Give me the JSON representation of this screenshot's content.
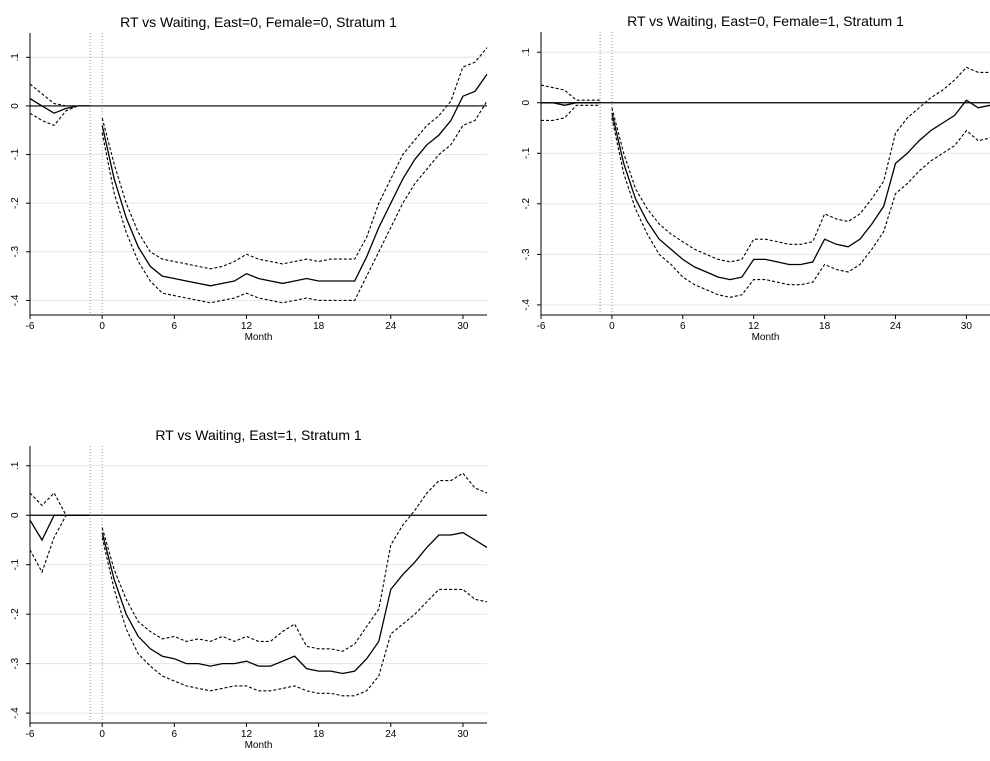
{
  "chart_data": [
    {
      "type": "line",
      "title": "RT vs Waiting, East=0, Female=0, Stratum 1",
      "xlabel": "Month",
      "ylabel": "",
      "xlim": [
        -6,
        32
      ],
      "ylim": [
        -0.43,
        0.15
      ],
      "xticks": [
        -6,
        0,
        6,
        12,
        18,
        24,
        30
      ],
      "yticks": [
        0.1,
        0,
        -0.1,
        -0.2,
        -0.3,
        -0.4
      ],
      "ytick_labels": [
        ".1",
        "0",
        "-.1",
        "-.2",
        "-.3",
        "-.4"
      ],
      "grid": true,
      "reference_lines": {
        "horizontal": [
          0
        ],
        "vertical_dotted": [
          -1,
          0
        ]
      },
      "series": [
        {
          "style": "solid",
          "x": [
            -6,
            -5,
            -4,
            -3,
            -2,
            -1
          ],
          "y": [
            0.015,
            0.0,
            -0.015,
            -0.005,
            0.0,
            0.0
          ]
        },
        {
          "style": "dashed",
          "x": [
            -6,
            -5,
            -4,
            -3,
            -2,
            -1
          ],
          "y": [
            0.045,
            0.025,
            0.005,
            0.0,
            0.0,
            0.0
          ]
        },
        {
          "style": "dashed",
          "x": [
            -6,
            -5,
            -4,
            -3,
            -2,
            -1
          ],
          "y": [
            -0.015,
            -0.03,
            -0.04,
            -0.01,
            0.0,
            0.0
          ]
        },
        {
          "style": "solid",
          "x": [
            0,
            1,
            2,
            3,
            4,
            5,
            6,
            7,
            8,
            9,
            10,
            11,
            12,
            13,
            14,
            15,
            16,
            17,
            18,
            19,
            20,
            21,
            22,
            23,
            24,
            25,
            26,
            27,
            28,
            29,
            30,
            31,
            32
          ],
          "y": [
            -0.04,
            -0.15,
            -0.23,
            -0.29,
            -0.33,
            -0.35,
            -0.355,
            -0.36,
            -0.365,
            -0.37,
            -0.365,
            -0.36,
            -0.345,
            -0.355,
            -0.36,
            -0.365,
            -0.36,
            -0.355,
            -0.36,
            -0.36,
            -0.36,
            -0.36,
            -0.31,
            -0.25,
            -0.2,
            -0.15,
            -0.11,
            -0.08,
            -0.06,
            -0.03,
            0.02,
            0.03,
            0.065
          ]
        },
        {
          "style": "dashed",
          "x": [
            0,
            1,
            2,
            3,
            4,
            5,
            6,
            7,
            8,
            9,
            10,
            11,
            12,
            13,
            14,
            15,
            16,
            17,
            18,
            19,
            20,
            21,
            22,
            23,
            24,
            25,
            26,
            27,
            28,
            29,
            30,
            31,
            32
          ],
          "y": [
            -0.025,
            -0.12,
            -0.2,
            -0.26,
            -0.3,
            -0.315,
            -0.32,
            -0.325,
            -0.33,
            -0.335,
            -0.33,
            -0.32,
            -0.305,
            -0.315,
            -0.32,
            -0.325,
            -0.32,
            -0.315,
            -0.32,
            -0.315,
            -0.315,
            -0.315,
            -0.27,
            -0.2,
            -0.15,
            -0.1,
            -0.07,
            -0.04,
            -0.02,
            0.01,
            0.08,
            0.09,
            0.12
          ]
        },
        {
          "style": "dashed",
          "x": [
            0,
            1,
            2,
            3,
            4,
            5,
            6,
            7,
            8,
            9,
            10,
            11,
            12,
            13,
            14,
            15,
            16,
            17,
            18,
            19,
            20,
            21,
            22,
            23,
            24,
            25,
            26,
            27,
            28,
            29,
            30,
            31,
            32
          ],
          "y": [
            -0.055,
            -0.18,
            -0.26,
            -0.32,
            -0.36,
            -0.385,
            -0.39,
            -0.395,
            -0.4,
            -0.405,
            -0.4,
            -0.395,
            -0.385,
            -0.395,
            -0.4,
            -0.405,
            -0.4,
            -0.395,
            -0.4,
            -0.4,
            -0.4,
            -0.4,
            -0.35,
            -0.3,
            -0.25,
            -0.2,
            -0.16,
            -0.13,
            -0.1,
            -0.08,
            -0.04,
            -0.03,
            0.01
          ]
        }
      ]
    },
    {
      "type": "line",
      "title": "RT vs Waiting, East=0, Female=1, Stratum 1",
      "xlabel": "Month",
      "ylabel": "",
      "xlim": [
        -6,
        32
      ],
      "ylim": [
        -0.42,
        0.14
      ],
      "xticks": [
        -6,
        0,
        6,
        12,
        18,
        24,
        30
      ],
      "yticks": [
        0.1,
        0,
        -0.1,
        -0.2,
        -0.3,
        -0.4
      ],
      "ytick_labels": [
        ".1",
        "0",
        "-.1",
        "-.2",
        "-.3",
        "-.4"
      ],
      "grid": true,
      "reference_lines": {
        "horizontal": [
          0
        ],
        "vertical_dotted": [
          -1,
          0
        ]
      },
      "series": [
        {
          "style": "solid",
          "x": [
            -6,
            -5,
            -4,
            -3,
            -2,
            -1
          ],
          "y": [
            0.0,
            0.0,
            -0.005,
            0.0,
            0.0,
            0.0
          ]
        },
        {
          "style": "dashed",
          "x": [
            -6,
            -5,
            -4,
            -3,
            -2,
            -1
          ],
          "y": [
            0.035,
            0.03,
            0.025,
            0.005,
            0.005,
            0.005
          ]
        },
        {
          "style": "dashed",
          "x": [
            -6,
            -5,
            -4,
            -3,
            -2,
            -1
          ],
          "y": [
            -0.035,
            -0.035,
            -0.03,
            -0.005,
            -0.005,
            -0.005
          ]
        },
        {
          "style": "solid",
          "x": [
            0,
            1,
            2,
            3,
            4,
            5,
            6,
            7,
            8,
            9,
            10,
            11,
            12,
            13,
            14,
            15,
            16,
            17,
            18,
            19,
            20,
            21,
            22,
            23,
            24,
            25,
            26,
            27,
            28,
            29,
            30,
            31,
            32
          ],
          "y": [
            -0.02,
            -0.12,
            -0.19,
            -0.235,
            -0.27,
            -0.29,
            -0.31,
            -0.325,
            -0.335,
            -0.345,
            -0.35,
            -0.345,
            -0.31,
            -0.31,
            -0.315,
            -0.32,
            -0.32,
            -0.315,
            -0.27,
            -0.28,
            -0.285,
            -0.27,
            -0.24,
            -0.205,
            -0.12,
            -0.1,
            -0.075,
            -0.055,
            -0.04,
            -0.025,
            0.005,
            -0.01,
            -0.005
          ]
        },
        {
          "style": "dashed",
          "x": [
            0,
            1,
            2,
            3,
            4,
            5,
            6,
            7,
            8,
            9,
            10,
            11,
            12,
            13,
            14,
            15,
            16,
            17,
            18,
            19,
            20,
            21,
            22,
            23,
            24,
            25,
            26,
            27,
            28,
            29,
            30,
            31,
            32
          ],
          "y": [
            -0.01,
            -0.1,
            -0.17,
            -0.21,
            -0.24,
            -0.26,
            -0.275,
            -0.29,
            -0.3,
            -0.31,
            -0.315,
            -0.31,
            -0.27,
            -0.27,
            -0.275,
            -0.28,
            -0.28,
            -0.275,
            -0.22,
            -0.23,
            -0.235,
            -0.22,
            -0.19,
            -0.155,
            -0.06,
            -0.03,
            -0.01,
            0.01,
            0.025,
            0.045,
            0.07,
            0.06,
            0.06
          ]
        },
        {
          "style": "dashed",
          "x": [
            0,
            1,
            2,
            3,
            4,
            5,
            6,
            7,
            8,
            9,
            10,
            11,
            12,
            13,
            14,
            15,
            16,
            17,
            18,
            19,
            20,
            21,
            22,
            23,
            24,
            25,
            26,
            27,
            28,
            29,
            30,
            31,
            32
          ],
          "y": [
            -0.03,
            -0.14,
            -0.21,
            -0.26,
            -0.3,
            -0.32,
            -0.345,
            -0.36,
            -0.37,
            -0.38,
            -0.385,
            -0.38,
            -0.35,
            -0.35,
            -0.355,
            -0.36,
            -0.36,
            -0.355,
            -0.32,
            -0.33,
            -0.335,
            -0.32,
            -0.29,
            -0.255,
            -0.18,
            -0.16,
            -0.135,
            -0.115,
            -0.1,
            -0.085,
            -0.055,
            -0.075,
            -0.07
          ]
        }
      ]
    },
    {
      "type": "line",
      "title": "RT vs Waiting, East=1, Stratum 1",
      "xlabel": "Month",
      "ylabel": "",
      "xlim": [
        -6,
        32
      ],
      "ylim": [
        -0.42,
        0.14
      ],
      "xticks": [
        -6,
        0,
        6,
        12,
        18,
        24,
        30
      ],
      "yticks": [
        0.1,
        0,
        -0.1,
        -0.2,
        -0.3,
        -0.4
      ],
      "ytick_labels": [
        ".1",
        "0",
        "-.1",
        "-.2",
        "-.3",
        "-.4"
      ],
      "grid": true,
      "reference_lines": {
        "horizontal": [
          0
        ],
        "vertical_dotted": [
          -1,
          0
        ]
      },
      "series": [
        {
          "style": "solid",
          "x": [
            -6,
            -5,
            -4,
            -3,
            -2,
            -1
          ],
          "y": [
            -0.01,
            -0.05,
            0.0,
            0.0,
            0.0,
            0.0
          ]
        },
        {
          "style": "dashed",
          "x": [
            -6,
            -5,
            -4,
            -3,
            -2,
            -1
          ],
          "y": [
            0.045,
            0.02,
            0.045,
            0.0,
            0.0,
            0.0
          ]
        },
        {
          "style": "dashed",
          "x": [
            -6,
            -5,
            -4,
            -3,
            -2,
            -1
          ],
          "y": [
            -0.07,
            -0.115,
            -0.045,
            0.0,
            0.0,
            0.0
          ]
        },
        {
          "style": "solid",
          "x": [
            0,
            1,
            2,
            3,
            4,
            5,
            6,
            7,
            8,
            9,
            10,
            11,
            12,
            13,
            14,
            15,
            16,
            17,
            18,
            19,
            20,
            21,
            22,
            23,
            24,
            25,
            26,
            27,
            28,
            29,
            30,
            31,
            32
          ],
          "y": [
            -0.035,
            -0.13,
            -0.2,
            -0.245,
            -0.27,
            -0.285,
            -0.29,
            -0.3,
            -0.3,
            -0.305,
            -0.3,
            -0.3,
            -0.295,
            -0.305,
            -0.305,
            -0.295,
            -0.285,
            -0.31,
            -0.315,
            -0.315,
            -0.32,
            -0.315,
            -0.29,
            -0.255,
            -0.15,
            -0.12,
            -0.095,
            -0.065,
            -0.04,
            -0.04,
            -0.035,
            -0.05,
            -0.065
          ]
        },
        {
          "style": "dashed",
          "x": [
            0,
            1,
            2,
            3,
            4,
            5,
            6,
            7,
            8,
            9,
            10,
            11,
            12,
            13,
            14,
            15,
            16,
            17,
            18,
            19,
            20,
            21,
            22,
            23,
            24,
            25,
            26,
            27,
            28,
            29,
            30,
            31,
            32
          ],
          "y": [
            -0.025,
            -0.11,
            -0.17,
            -0.215,
            -0.235,
            -0.25,
            -0.245,
            -0.255,
            -0.25,
            -0.255,
            -0.245,
            -0.255,
            -0.245,
            -0.255,
            -0.255,
            -0.235,
            -0.22,
            -0.265,
            -0.27,
            -0.27,
            -0.275,
            -0.26,
            -0.225,
            -0.19,
            -0.06,
            -0.02,
            0.01,
            0.045,
            0.07,
            0.07,
            0.085,
            0.055,
            0.045
          ]
        },
        {
          "style": "dashed",
          "x": [
            0,
            1,
            2,
            3,
            4,
            5,
            6,
            7,
            8,
            9,
            10,
            11,
            12,
            13,
            14,
            15,
            16,
            17,
            18,
            19,
            20,
            21,
            22,
            23,
            24,
            25,
            26,
            27,
            28,
            29,
            30,
            31,
            32
          ],
          "y": [
            -0.045,
            -0.15,
            -0.23,
            -0.28,
            -0.305,
            -0.325,
            -0.335,
            -0.345,
            -0.35,
            -0.355,
            -0.35,
            -0.345,
            -0.345,
            -0.355,
            -0.355,
            -0.35,
            -0.345,
            -0.355,
            -0.36,
            -0.36,
            -0.365,
            -0.365,
            -0.355,
            -0.325,
            -0.24,
            -0.22,
            -0.2,
            -0.175,
            -0.15,
            -0.15,
            -0.15,
            -0.17,
            -0.175
          ]
        }
      ]
    }
  ]
}
